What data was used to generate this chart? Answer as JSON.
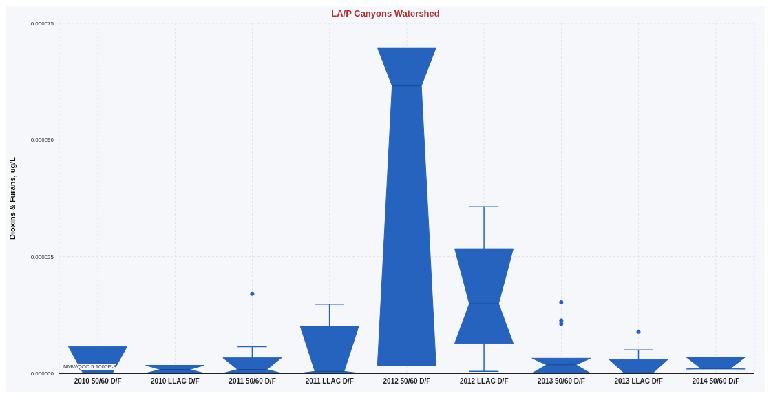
{
  "chart_data": {
    "type": "box",
    "title": "LA/P Canyons Watershed",
    "ylabel": "Dioxins & Furans, ug/L",
    "categories": [
      "2010 50/60 D/F",
      "2010 LLAC D/F",
      "2011 50/60 D/F",
      "2011 LLAC D/F",
      "2012 50/60 D/F",
      "2012 LLAC D/F",
      "2013 50/60 D/F",
      "2013 LLAC D/F",
      "2014 50/60 D/F"
    ],
    "color": "#2563be",
    "boxes": [
      {
        "low": 0,
        "q1": 0,
        "median": 0,
        "q3": 5.7e-06,
        "high": 5.7e-06
      },
      {
        "low": 0,
        "q1": 0,
        "median": 8e-07,
        "q3": 1.7e-06,
        "high": 1.7e-06
      },
      {
        "low": 0,
        "q1": 0,
        "median": 8e-07,
        "q3": 3.3e-06,
        "high": 5.7e-06,
        "outliers": [
          1.7e-05
        ]
      },
      {
        "low": 0,
        "q1": 0,
        "median": 4e-07,
        "q3": 1.01e-05,
        "high": 1.48e-05
      },
      {
        "low": 1.6e-06,
        "q1": 1.6e-06,
        "median": 6.16e-05,
        "q3": 6.98e-05,
        "high": 6.98e-05
      },
      {
        "low": 4e-07,
        "q1": 6.4e-06,
        "median": 1.49e-05,
        "q3": 2.67e-05,
        "high": 3.57e-05
      },
      {
        "low": 0,
        "q1": 0,
        "median": 1.8e-06,
        "q3": 3.2e-06,
        "high": 3.2e-06,
        "outliers": [
          1.52e-05,
          1.13e-05,
          1.06e-05
        ]
      },
      {
        "low": 0,
        "q1": 0,
        "median": 1e-07,
        "q3": 2.9e-06,
        "high": 5e-06,
        "outliers": [
          8.9e-06
        ]
      },
      {
        "low": 9e-07,
        "q1": 9e-07,
        "median": 1e-06,
        "q3": 3.4e-06,
        "high": 3.4e-06
      }
    ],
    "ylim": [
      0,
      7.5e-05
    ],
    "yticks": [
      {
        "value": 0,
        "label": "0.000000"
      },
      {
        "value": 2.5e-05,
        "label": "0.000025"
      },
      {
        "value": 5e-05,
        "label": "0.000050"
      },
      {
        "value": 7.5e-05,
        "label": "0.000075"
      }
    ],
    "grid": true,
    "annotations": [
      "NMWQCC 5.1000E-8"
    ]
  }
}
